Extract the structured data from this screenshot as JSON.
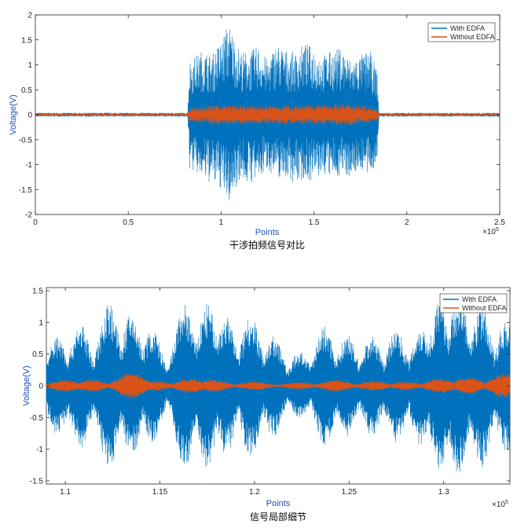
{
  "colors": {
    "with_edfa": "#0072BD",
    "without_edfa": "#D95319"
  },
  "chart_data": [
    {
      "type": "line",
      "caption": "干涉拍频信号对比",
      "xlabel": "Points",
      "ylabel": "Voltage(V)",
      "x_exponent": "×10^5",
      "x_exp_base": "×10",
      "x_exp_power": "5",
      "xlim": [
        0,
        250000
      ],
      "ylim": [
        -2,
        2
      ],
      "xticks": [
        0,
        50000,
        100000,
        150000,
        200000,
        250000
      ],
      "xtick_labels": [
        "0",
        "0.5",
        "1",
        "1.5",
        "2",
        "2.5"
      ],
      "yticks": [
        -2,
        -1.5,
        -1,
        -0.5,
        0,
        0.5,
        1,
        1.5,
        2
      ],
      "ytick_labels": [
        "-2",
        "-1.5",
        "-1",
        "-0.5",
        "0",
        "0.5",
        "1",
        "1.5",
        "2"
      ],
      "legend": "top-right",
      "grid": false,
      "series": [
        {
          "name": "With EDFA",
          "envelope": {
            "x": [
              0,
              82000,
              83000,
              90000,
              95000,
              100000,
              104000,
              110000,
              115000,
              120000,
              125000,
              130000,
              135000,
              140000,
              145000,
              150000,
              155000,
              160000,
              165000,
              170000,
              175000,
              180000,
              184000,
              185000,
              250000
            ],
            "upper": [
              0.04,
              0.04,
              1.1,
              1.3,
              1.2,
              1.5,
              1.88,
              1.3,
              1.25,
              1.4,
              1.1,
              1.45,
              1.3,
              1.25,
              1.45,
              1.35,
              1.2,
              1.3,
              1.35,
              1.1,
              1.2,
              1.3,
              0.9,
              0.04,
              0.04
            ],
            "lower": [
              -0.04,
              -0.04,
              -1.1,
              -1.3,
              -1.4,
              -1.5,
              -1.8,
              -1.3,
              -1.4,
              -1.35,
              -1.1,
              -1.3,
              -1.25,
              -1.4,
              -1.3,
              -1.35,
              -1.2,
              -1.3,
              -1.2,
              -1.25,
              -1.1,
              -1.3,
              -0.9,
              -0.04,
              -0.04
            ]
          }
        },
        {
          "name": "Without EDFA",
          "envelope": {
            "x": [
              0,
              82000,
              83000,
              100000,
              120000,
              150000,
              170000,
              184000,
              185000,
              250000
            ],
            "upper": [
              0.02,
              0.02,
              0.15,
              0.2,
              0.18,
              0.2,
              0.22,
              0.15,
              0.02,
              0.02
            ],
            "lower": [
              -0.02,
              -0.02,
              -0.15,
              -0.2,
              -0.18,
              -0.2,
              -0.2,
              -0.15,
              -0.02,
              -0.02
            ]
          }
        }
      ]
    },
    {
      "type": "line",
      "caption": "信号局部细节",
      "xlabel": "Points",
      "ylabel": "Voltage(V)",
      "x_exponent": "×10^5",
      "x_exp_base": "×10",
      "x_exp_power": "5",
      "xlim": [
        109000,
        133500
      ],
      "ylim": [
        -1.55,
        1.55
      ],
      "xticks": [
        110000,
        115000,
        120000,
        125000,
        130000
      ],
      "xtick_labels": [
        "1.1",
        "1.15",
        "1.2",
        "1.25",
        "1.3"
      ],
      "yticks": [
        -1.5,
        -1,
        -0.5,
        0,
        0.5,
        1,
        1.5
      ],
      "ytick_labels": [
        "-1.5",
        "-1",
        "-0.5",
        "0",
        "0.5",
        "1",
        "1.5"
      ],
      "legend": "top-right",
      "grid": false,
      "series": [
        {
          "name": "With EDFA",
          "burst_centers": [
            109600,
            110800,
            112300,
            113500,
            114600,
            116300,
            117500,
            118500,
            119800,
            121000,
            122400,
            123700,
            124900,
            126200,
            127500,
            128800,
            129800,
            130800,
            132000,
            133300
          ],
          "burst_peaks": [
            0.8,
            1.0,
            1.35,
            1.15,
            0.9,
            1.3,
            1.3,
            1.1,
            1.15,
            0.8,
            0.55,
            0.95,
            0.8,
            0.8,
            0.9,
            0.95,
            1.35,
            1.45,
            1.3,
            1.05
          ]
        },
        {
          "name": "Without EDFA",
          "burst_centers": [
            110000,
            111400,
            113500,
            114800,
            116600,
            117800,
            120000,
            122300,
            124300,
            126300,
            128000,
            129800,
            131300,
            133200
          ],
          "burst_peaks": [
            0.1,
            0.1,
            0.22,
            0.08,
            0.12,
            0.1,
            0.07,
            0.06,
            0.1,
            0.08,
            0.07,
            0.12,
            0.14,
            0.2
          ]
        }
      ]
    }
  ]
}
